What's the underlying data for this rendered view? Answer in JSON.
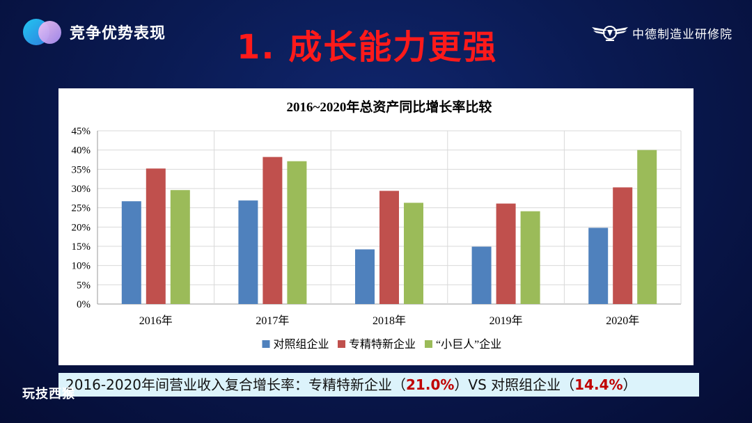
{
  "header": {
    "section_title": "竞争优势表现",
    "main_title": "1. 成长能力更强",
    "brand": "中德制造业研修院"
  },
  "chart_data": {
    "type": "bar",
    "title": "2016~2020年总资产同比增长率比较",
    "categories": [
      "2016年",
      "2017年",
      "2018年",
      "2019年",
      "2020年"
    ],
    "series": [
      {
        "name": "对照组企业",
        "color": "#4f81bd",
        "values": [
          26.7,
          26.9,
          14.2,
          14.9,
          19.8
        ]
      },
      {
        "name": "专精特新企业",
        "color": "#c0504d",
        "values": [
          35.2,
          38.2,
          29.4,
          26.1,
          30.3
        ]
      },
      {
        "name": "“小巨人”企业",
        "color": "#9bbb59",
        "values": [
          29.6,
          37.1,
          26.3,
          24.1,
          40.0
        ]
      }
    ],
    "ylim": [
      0,
      45
    ],
    "yticks": [
      "0%",
      "5%",
      "10%",
      "15%",
      "20%",
      "25%",
      "30%",
      "35%",
      "40%",
      "45%"
    ],
    "grid": true,
    "legend_position": "bottom"
  },
  "summary": {
    "prefix": "2016-2020年间营业收入复合增长率：专精特新企业（",
    "value1": "21.0%",
    "middle": "）VS 对照组企业（",
    "value2": "14.4%",
    "suffix": "）"
  },
  "footer": {
    "watermark": "玩技西猴"
  }
}
